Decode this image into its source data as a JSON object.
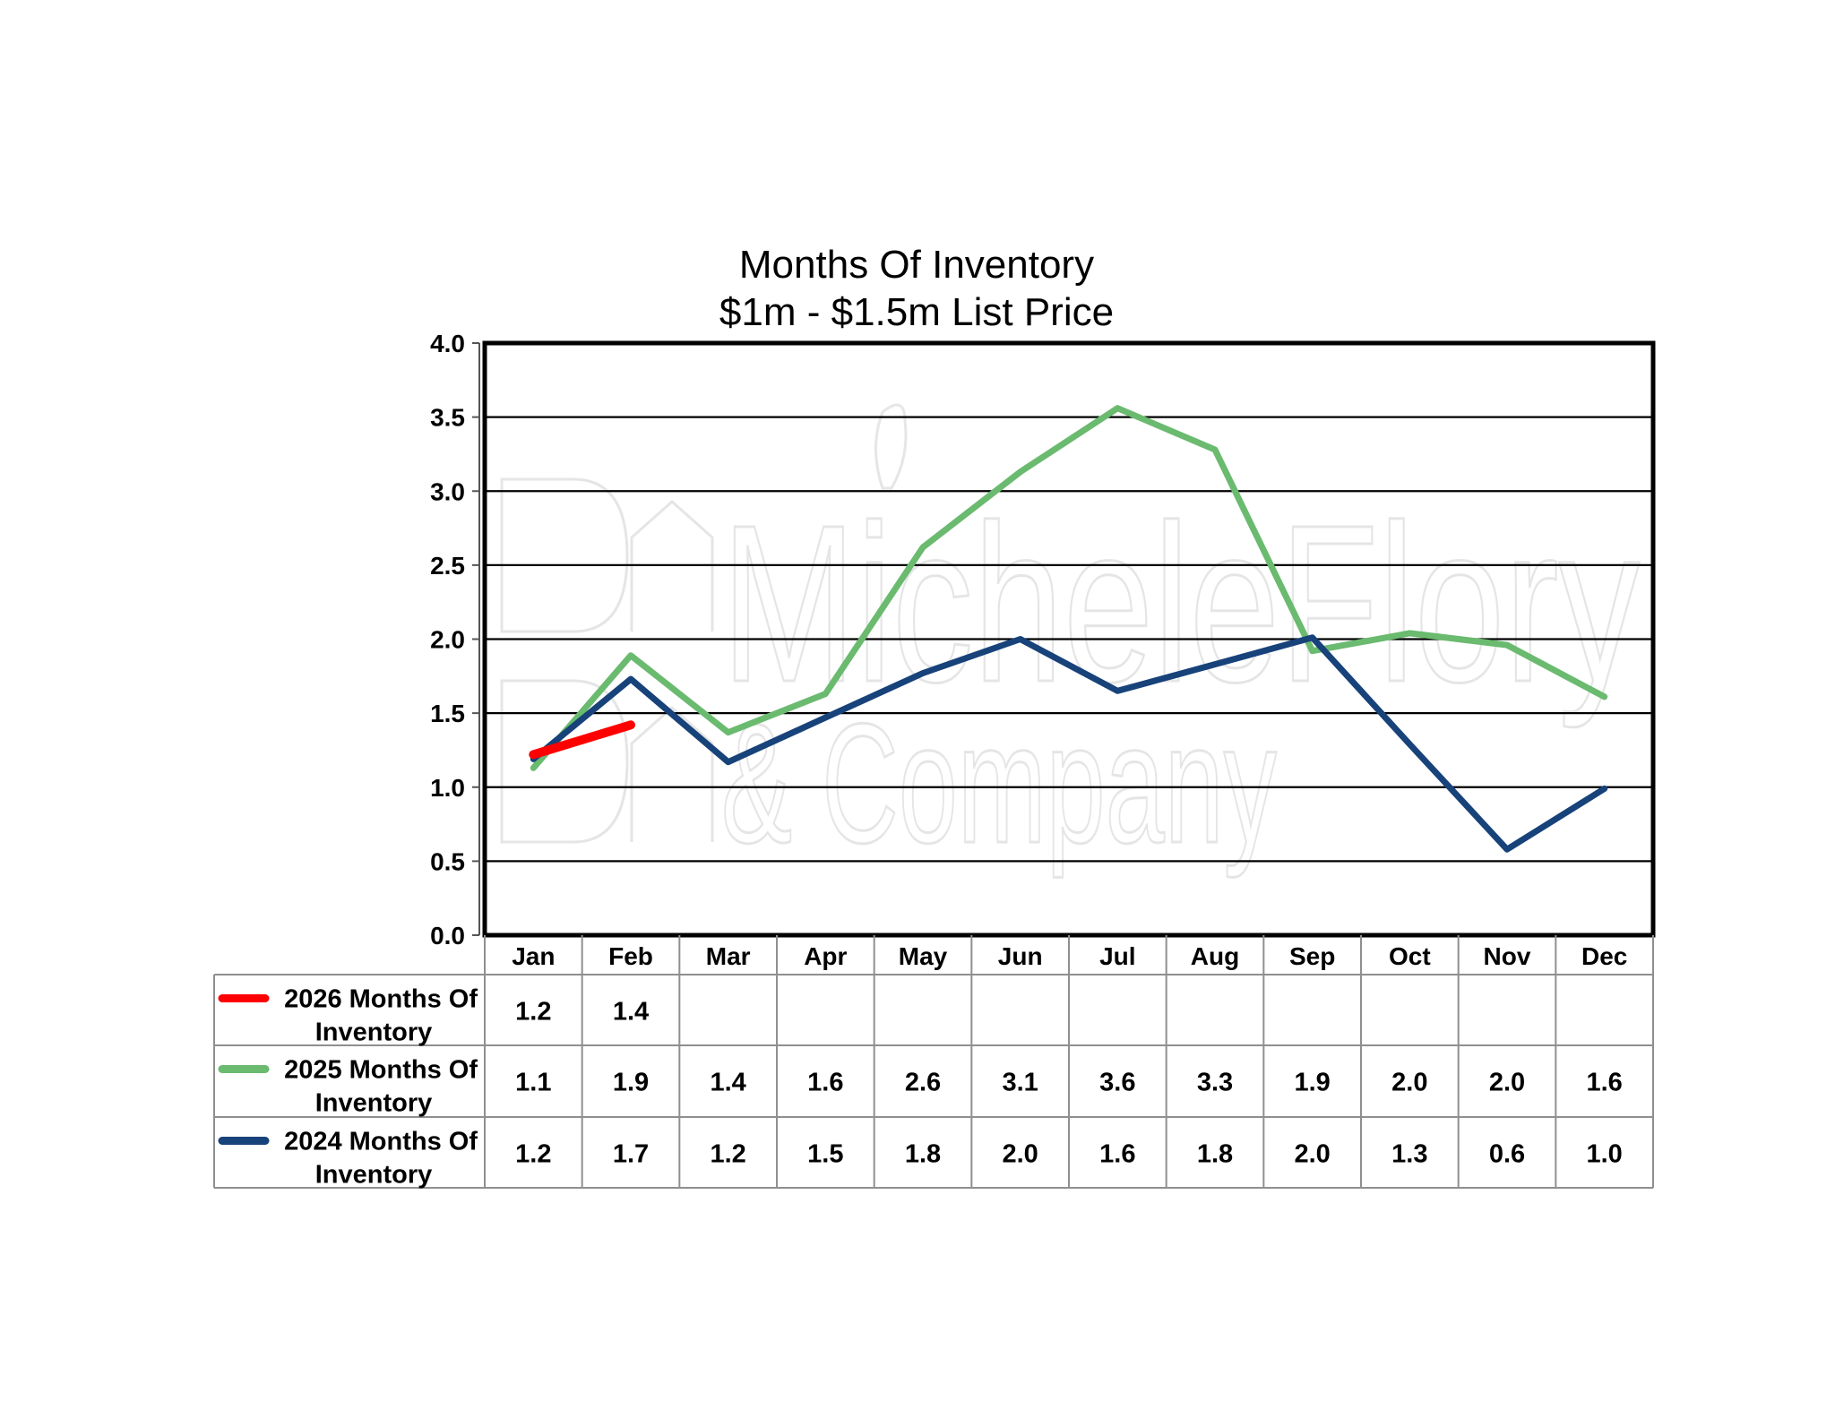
{
  "chart_data": {
    "type": "line",
    "title_lines": [
      "Months Of Inventory",
      "$1m - $1.5m List Price"
    ],
    "categories": [
      "Jan",
      "Feb",
      "Mar",
      "Apr",
      "May",
      "Jun",
      "Jul",
      "Aug",
      "Sep",
      "Oct",
      "Nov",
      "Dec"
    ],
    "y_ticks": [
      "0.0",
      "0.5",
      "1.0",
      "1.5",
      "2.0",
      "2.5",
      "3.0",
      "3.5",
      "4.0"
    ],
    "ylim": [
      0,
      4
    ],
    "grid": true,
    "series": [
      {
        "name": "2026 Months Of Inventory",
        "color": "#ff0000",
        "values": [
          1.22,
          1.42,
          null,
          null,
          null,
          null,
          null,
          null,
          null,
          null,
          null,
          null
        ],
        "labels": [
          "1.2",
          "1.4",
          "",
          "",
          "",
          "",
          "",
          "",
          "",
          "",
          "",
          ""
        ]
      },
      {
        "name": "2025 Months Of Inventory",
        "color": "#6aba6f",
        "values": [
          1.13,
          1.89,
          1.37,
          1.63,
          2.62,
          3.13,
          3.56,
          3.28,
          1.92,
          2.04,
          1.96,
          1.61
        ],
        "labels": [
          "1.1",
          "1.9",
          "1.4",
          "1.6",
          "2.6",
          "3.1",
          "3.6",
          "3.3",
          "1.9",
          "2.0",
          "2.0",
          "1.6"
        ]
      },
      {
        "name": "2024 Months Of Inventory",
        "color": "#17427a",
        "values": [
          1.19,
          1.73,
          1.17,
          1.47,
          1.77,
          2.0,
          1.65,
          1.83,
          2.01,
          1.29,
          0.58,
          0.99
        ],
        "labels": [
          "1.2",
          "1.7",
          "1.2",
          "1.5",
          "1.8",
          "2.0",
          "1.6",
          "1.8",
          "2.0",
          "1.3",
          "0.6",
          "1.0"
        ]
      }
    ],
    "watermark": {
      "line1": "MicheleFlory",
      "line2": "& Company"
    }
  }
}
